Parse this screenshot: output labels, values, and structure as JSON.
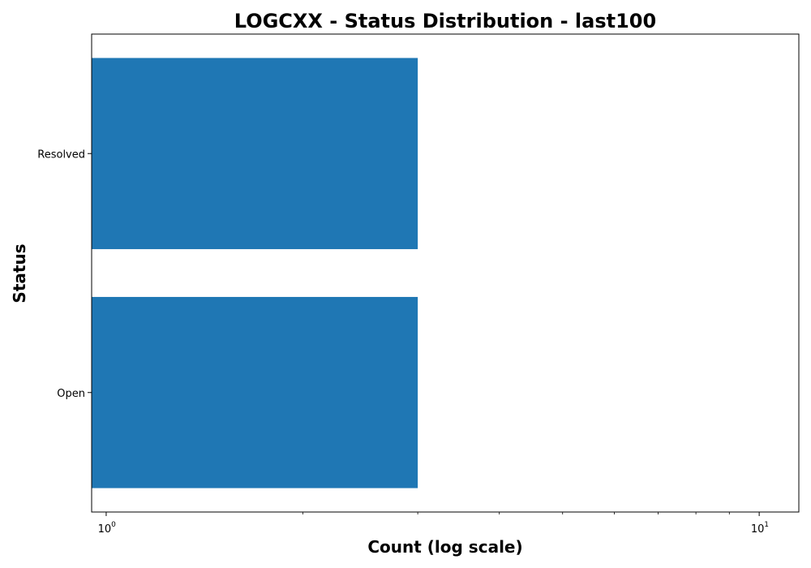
{
  "chart_data": {
    "type": "bar",
    "orientation": "horizontal",
    "title": "LOGCXX - Status Distribution - last100",
    "xlabel": "Count (log scale)",
    "ylabel": "Status",
    "x_scale": "log",
    "xlim": [
      0.95,
      11.5
    ],
    "categories": [
      "Resolved",
      "Open"
    ],
    "values": [
      3,
      3
    ],
    "x_major_ticks": [
      {
        "value": 1,
        "base": "10",
        "exponent": "0"
      },
      {
        "value": 10,
        "base": "10",
        "exponent": "1"
      }
    ],
    "x_minor_ticks": [
      2,
      3,
      4,
      5,
      6,
      7,
      8,
      9
    ],
    "grid": false,
    "bar_color": "#1f77b4"
  }
}
